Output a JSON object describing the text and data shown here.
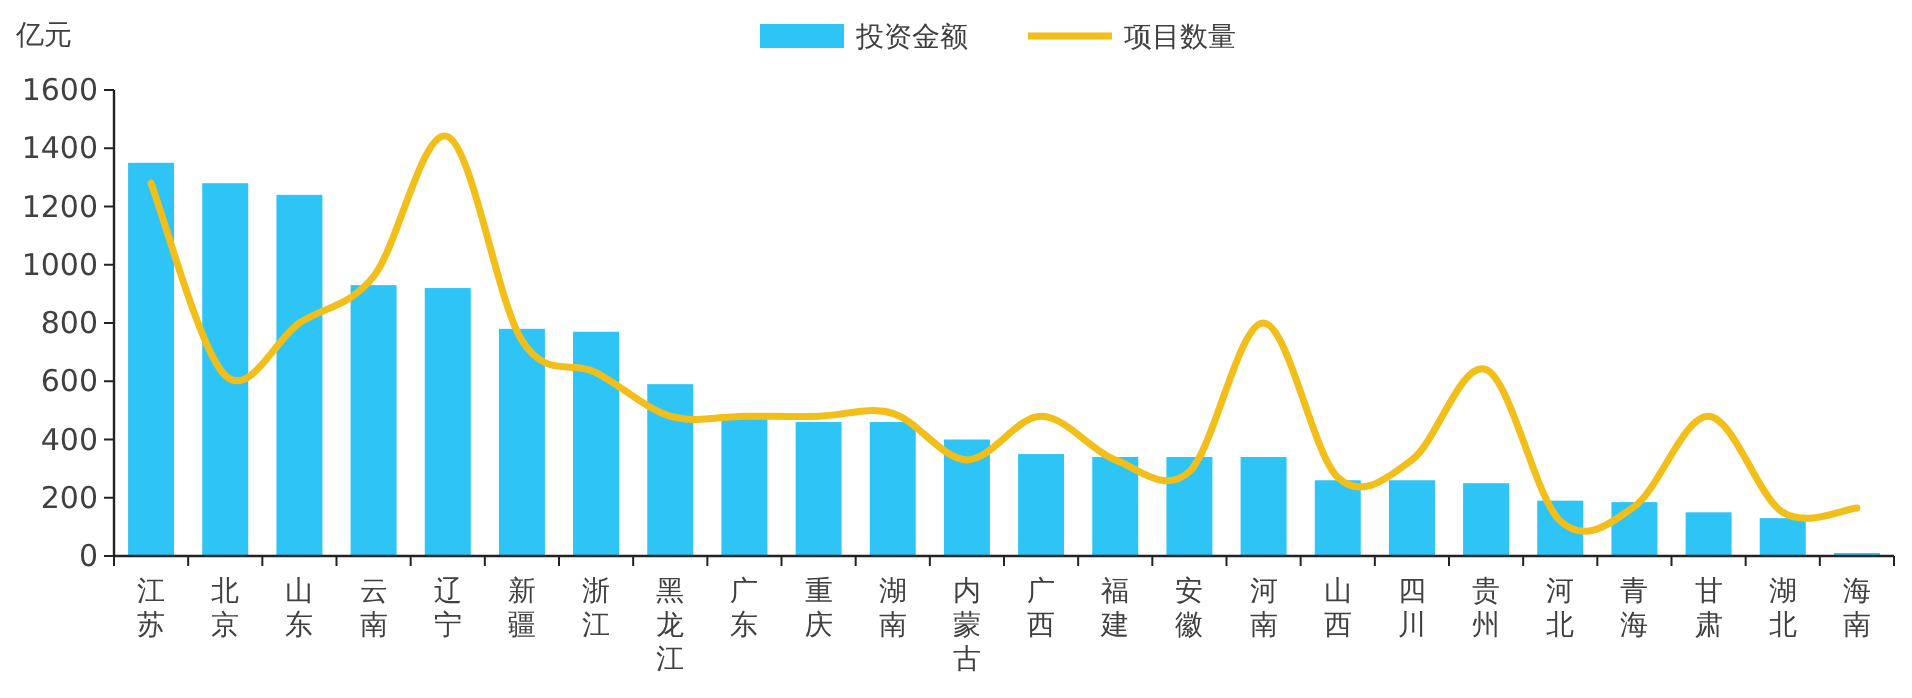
{
  "chart_data": {
    "type": "bar",
    "ylabel": "亿元",
    "categories": [
      "江苏",
      "北京",
      "山东",
      "云南",
      "辽宁",
      "新疆",
      "浙江",
      "黑龙江",
      "广东",
      "重庆",
      "湖南",
      "内蒙古",
      "广西",
      "福建",
      "安徽",
      "河南",
      "山西",
      "四川",
      "贵州",
      "河北",
      "青海",
      "甘肃",
      "湖北",
      "海南"
    ],
    "series": [
      {
        "name": "投资金额",
        "color": "#2ec4f5",
        "values": [
          1350,
          1280,
          1240,
          930,
          920,
          780,
          770,
          590,
          470,
          460,
          460,
          400,
          350,
          340,
          340,
          340,
          260,
          260,
          250,
          190,
          185,
          150,
          130,
          10
        ]
      },
      {
        "name": "项目数量",
        "type": "line",
        "color": "#f2be1a",
        "values": [
          1280,
          620,
          800,
          960,
          1440,
          740,
          630,
          480,
          480,
          480,
          490,
          330,
          480,
          330,
          290,
          800,
          270,
          330,
          640,
          120,
          170,
          480,
          150,
          165
        ]
      }
    ],
    "ylim": [
      0,
      1600
    ],
    "yticks": [
      0,
      200,
      400,
      600,
      800,
      1000,
      1200,
      1400,
      1600
    ],
    "grid": false,
    "legend": "top",
    "marker": "none",
    "line_style": "solid"
  }
}
